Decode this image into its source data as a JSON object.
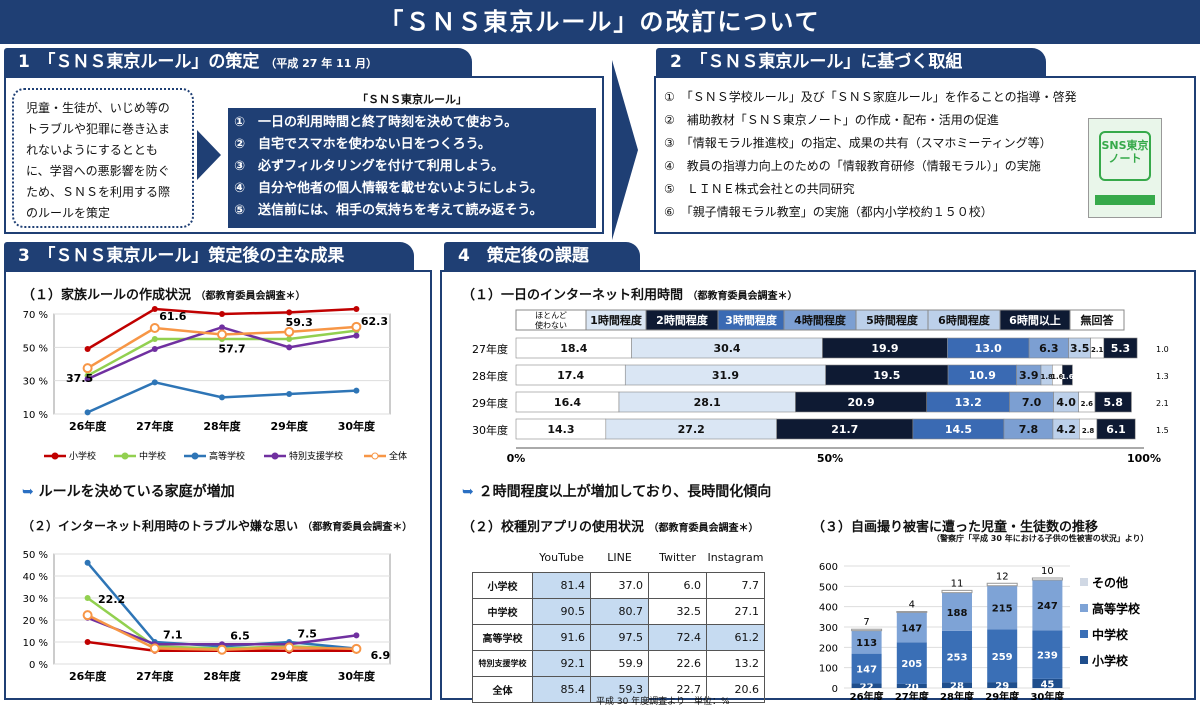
{
  "title": "「ＳＮＳ東京ルール」の改訂について",
  "s1": {
    "tab": "1　「ＳＮＳ東京ルール」の策定",
    "tab_note": "（平成 27 年 11 月）",
    "intro": "児童・生徒が、いじめ等のトラブルや犯罪に巻き込まれないようにするとともに、学習への悪影響を防ぐため、ＳＮＳを利用する際のルールを策定",
    "rules_title": "「ＳＮＳ東京ルール」",
    "rules": [
      "①　一日の利用時間と終了時刻を決めて使おう。",
      "②　自宅でスマホを使わない日をつくろう。",
      "③　必ずフィルタリングを付けて利用しよう。",
      "④　自分や他者の個人情報を載せないようにしよう。",
      "⑤　送信前には、相手の気持ちを考えて読み返そう。"
    ]
  },
  "s2": {
    "tab": "2　「ＳＮＳ東京ルール」に基づく取組",
    "items": [
      "①　「ＳＮＳ学校ルール」及び「ＳＮＳ家庭ルール」を作ることの指導・啓発",
      "②　補助教材「ＳＮＳ東京ノート」の作成・配布・活用の促進",
      "③　「情報モラル推進校」の指定、成果の共有（スマホミーティング等）",
      "④　教員の指導力向上のための「情報教育研修（情報モラル）」の実施",
      "⑤　ＬＩＮＥ株式会社との共同研究",
      "⑥　「親子情報モラル教室」の実施（都内小学校約１５０校）"
    ],
    "note_logo": "SNS東京ノート"
  },
  "s3": {
    "tab": "3　「ＳＮＳ東京ルール」策定後の主な成果",
    "c1_title": "（１）家族ルールの作成状況",
    "c1_src": "（都教育委員会調査＊）",
    "c1_yticks": [
      "70 %",
      "50 %",
      "30 %",
      "10 %"
    ],
    "c1_labels": [
      "37.5",
      "61.6",
      "57.7",
      "59.3",
      "62.3"
    ],
    "highlight1": "ルールを決めている家庭が増加",
    "c2_title": "（２）インターネット利用時のトラブルや嫌な思い",
    "c2_src": "（都教育委員会調査＊）",
    "c2_yticks": [
      "50 %",
      "40 %",
      "30 %",
      "20 %",
      "10 %",
      "0 %"
    ],
    "c2_labels": [
      "22.2",
      "7.1",
      "6.5",
      "7.5",
      "6.9"
    ]
  },
  "s4": {
    "tab": "4　策定後の課題",
    "c3_title": "（１）一日のインターネット利用時間",
    "c3_src": "（都教育委員会調査＊）",
    "c3_legend": [
      "ほとんど使わない",
      "1時間程度",
      "2時間程度",
      "3時間程度",
      "4時間程度",
      "5時間程度",
      "6時間程度",
      "6時間以上",
      "無回答"
    ],
    "c3_axis": [
      "0%",
      "50%",
      "100%"
    ],
    "highlight2": "２時間程度以上が増加しており、長時間化傾向",
    "c4_title": "（２）校種別アプリの使用状況",
    "c4_src": "（都教育委員会調査＊）",
    "c4_cols": [
      "YouTube",
      "LINE",
      "Twitter",
      "Instagram"
    ],
    "c4_rows": [
      [
        "小学校",
        "81.4",
        "37.0",
        "6.0",
        "7.7"
      ],
      [
        "中学校",
        "90.5",
        "80.7",
        "32.5",
        "27.1"
      ],
      [
        "高等学校",
        "91.6",
        "97.5",
        "72.4",
        "61.2"
      ],
      [
        "特別支援学校",
        "92.1",
        "59.9",
        "22.6",
        "13.2"
      ],
      [
        "全体",
        "85.4",
        "59.3",
        "22.7",
        "20.6"
      ]
    ],
    "c4_foot": "平成 30 年度調査より　単位：%",
    "c5_title": "（３）自画撮り被害に遭った児童・生徒数の推移",
    "c5_src": "（警察庁「平成 30 年における子供の性被害の状況」より）",
    "c5_yticks": [
      "600",
      "500",
      "400",
      "300",
      "200",
      "100",
      "0"
    ],
    "c5_legend": [
      "その他",
      "高等学校",
      "中学校",
      "小学校"
    ]
  },
  "chart_data": [
    {
      "type": "line",
      "title": "（１）家族ルールの作成状況",
      "categories": [
        "26年度",
        "27年度",
        "28年度",
        "29年度",
        "30年度"
      ],
      "ylim": [
        10,
        70
      ],
      "series": [
        {
          "name": "小学校",
          "values": [
            49,
            73,
            70,
            71,
            73
          ]
        },
        {
          "name": "中学校",
          "values": [
            33,
            55,
            55,
            55,
            60
          ]
        },
        {
          "name": "高等学校",
          "values": [
            11,
            29,
            20,
            22,
            24
          ]
        },
        {
          "name": "特別支援学校",
          "values": [
            31,
            49,
            62,
            50,
            57
          ]
        },
        {
          "name": "全体",
          "values": [
            37.5,
            61.6,
            57.7,
            59.3,
            62.3
          ]
        }
      ]
    },
    {
      "type": "line",
      "title": "（２）インターネット利用時のトラブルや嫌な思い",
      "categories": [
        "26年度",
        "27年度",
        "28年度",
        "29年度",
        "30年度"
      ],
      "ylim": [
        0,
        50
      ],
      "series": [
        {
          "name": "小学校",
          "values": [
            10,
            6,
            6,
            6,
            6
          ]
        },
        {
          "name": "中学校",
          "values": [
            30,
            8,
            7,
            8,
            7
          ]
        },
        {
          "name": "高等学校",
          "values": [
            46,
            10,
            8,
            10,
            7
          ]
        },
        {
          "name": "特別支援学校",
          "values": [
            21,
            9,
            9,
            9,
            13
          ]
        },
        {
          "name": "全体",
          "values": [
            22.2,
            7.1,
            6.5,
            7.5,
            6.9
          ]
        }
      ]
    },
    {
      "type": "bar",
      "title": "（１）一日のインターネット利用時間",
      "categories": [
        "27年度",
        "28年度",
        "29年度",
        "30年度"
      ],
      "series": [
        {
          "name": "1時間程度",
          "values": [
            18.4,
            17.4,
            16.4,
            14.3
          ]
        },
        {
          "name": "2時間程度",
          "values": [
            30.4,
            31.9,
            28.1,
            27.2
          ]
        },
        {
          "name": "3時間程度",
          "values": [
            19.9,
            19.5,
            20.9,
            21.7
          ]
        },
        {
          "name": "4時間程度",
          "values": [
            13.0,
            10.9,
            13.2,
            14.5
          ]
        },
        {
          "name": "5時間程度",
          "values": [
            6.3,
            3.9,
            7.0,
            7.8
          ]
        },
        {
          "name": "6時間程度",
          "values": [
            3.5,
            1.8,
            4.0,
            4.2
          ]
        },
        {
          "name": "6時間以上",
          "values": [
            2.1,
            1.6,
            2.6,
            2.8
          ]
        },
        {
          "name": "無回答",
          "values": [
            5.3,
            1.6,
            5.8,
            6.1
          ]
        },
        {
          "name": "ほとんど使わない",
          "values": [
            1.0,
            1.3,
            2.1,
            1.5
          ]
        }
      ]
    },
    {
      "type": "bar",
      "title": "（３）自画撮り被害に遭った児童・生徒数の推移",
      "categories": [
        "26年度",
        "27年度",
        "28年度",
        "29年度",
        "30年度"
      ],
      "ylim": [
        0,
        600
      ],
      "series": [
        {
          "name": "小学校",
          "values": [
            22,
            20,
            28,
            29,
            45
          ]
        },
        {
          "name": "中学校",
          "values": [
            147,
            205,
            253,
            259,
            239
          ]
        },
        {
          "name": "高等学校",
          "values": [
            113,
            147,
            188,
            215,
            247
          ]
        },
        {
          "name": "その他",
          "values": [
            7,
            4,
            11,
            12,
            10
          ]
        }
      ]
    }
  ]
}
